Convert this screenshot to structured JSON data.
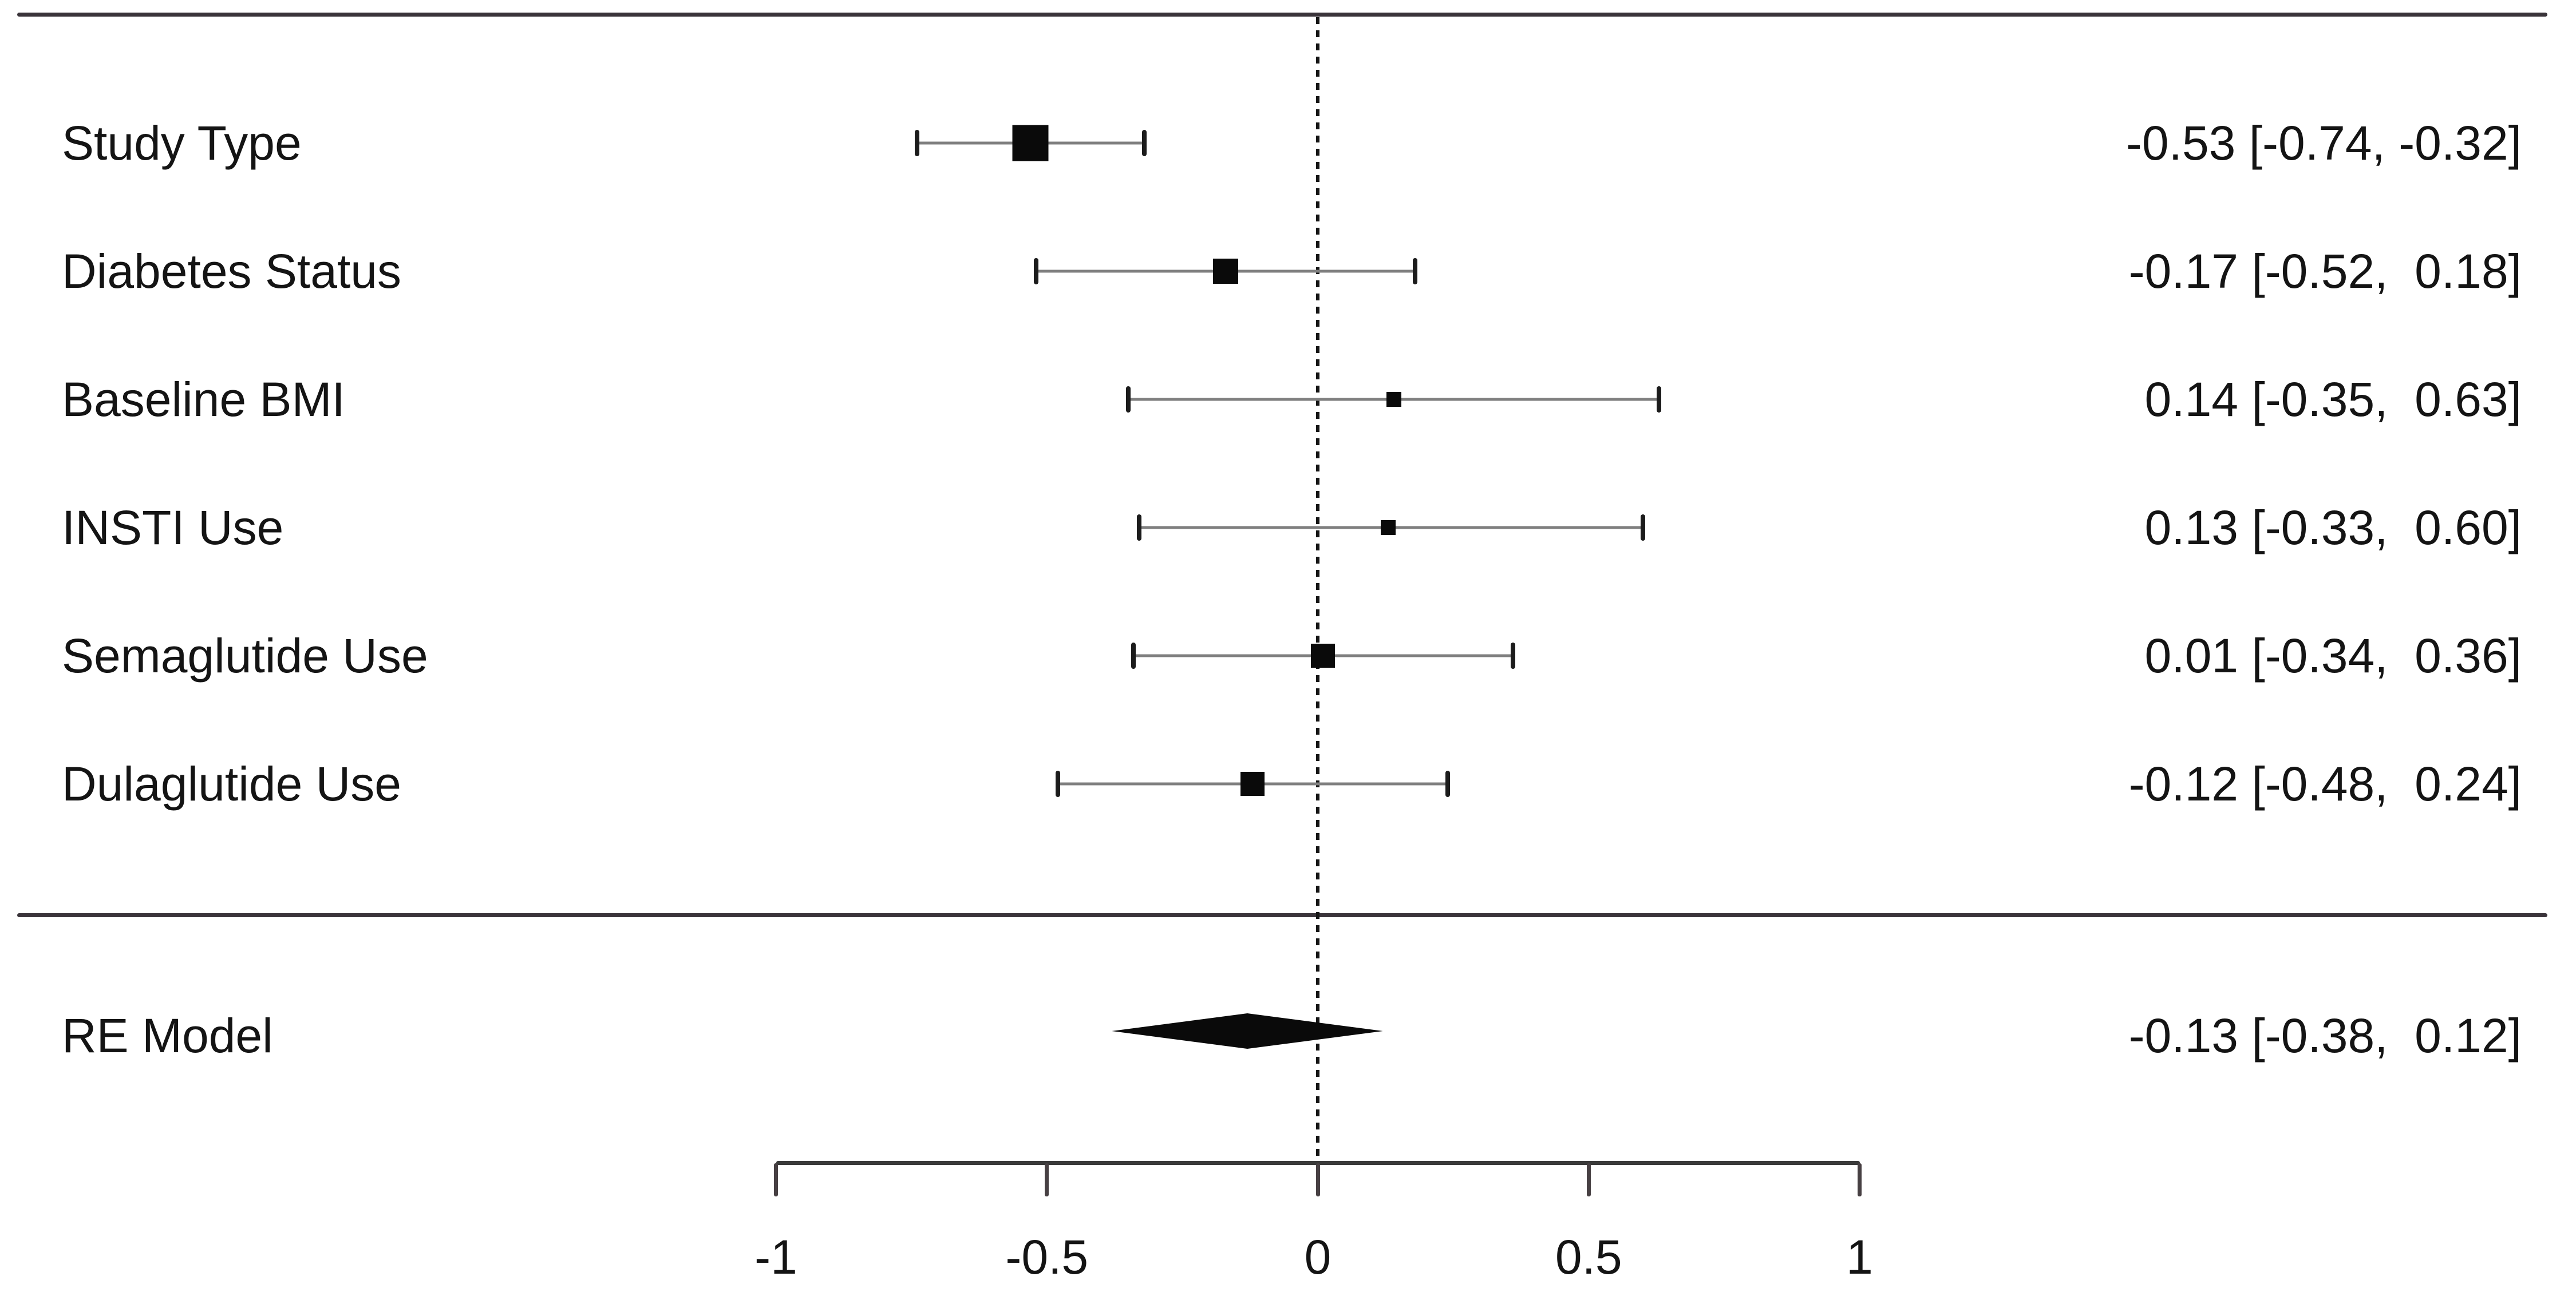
{
  "chart_data": {
    "type": "forest",
    "title": "",
    "xlabel": "",
    "xlim": [
      -1,
      1
    ],
    "x_ticks": [
      -1,
      -0.5,
      0,
      0.5,
      1
    ],
    "x_tick_labels": [
      "-1",
      "-0.5",
      "0",
      "0.5",
      "1"
    ],
    "zero_line_x": 0,
    "grid": false,
    "rows": [
      {
        "label": "Study Type",
        "estimate": -0.53,
        "ci_low": -0.74,
        "ci_high": -0.32,
        "display": "-0.53 [-0.74, -0.32]",
        "square_size": 63
      },
      {
        "label": "Diabetes Status",
        "estimate": -0.17,
        "ci_low": -0.52,
        "ci_high": 0.18,
        "display": "-0.17 [-0.52,  0.18]",
        "square_size": 44
      },
      {
        "label": "Baseline BMI",
        "estimate": 0.14,
        "ci_low": -0.35,
        "ci_high": 0.63,
        "display": "0.14 [-0.35,  0.63]",
        "square_size": 26
      },
      {
        "label": "INSTI Use",
        "estimate": 0.13,
        "ci_low": -0.33,
        "ci_high": 0.6,
        "display": "0.13 [-0.33,  0.60]",
        "square_size": 26
      },
      {
        "label": "Semaglutide Use",
        "estimate": 0.01,
        "ci_low": -0.34,
        "ci_high": 0.36,
        "display": "0.01 [-0.34,  0.36]",
        "square_size": 42
      },
      {
        "label": "Dulaglutide Use",
        "estimate": -0.12,
        "ci_low": -0.48,
        "ci_high": 0.24,
        "display": "-0.12 [-0.48,  0.24]",
        "square_size": 42
      }
    ],
    "summary": {
      "label": "RE Model",
      "estimate": -0.13,
      "ci_low": -0.38,
      "ci_high": 0.12,
      "display": "-0.13 [-0.38,  0.12]"
    }
  },
  "colors": {
    "background": "#ffffff",
    "rule": "#3a343a",
    "axis": "#3a3a3a",
    "square": "#0a0a0a",
    "diamond": "#0a0a0a",
    "ci_line": "#7f7f7f",
    "ci_cap": "#1c1c1c",
    "text": "#141414"
  }
}
